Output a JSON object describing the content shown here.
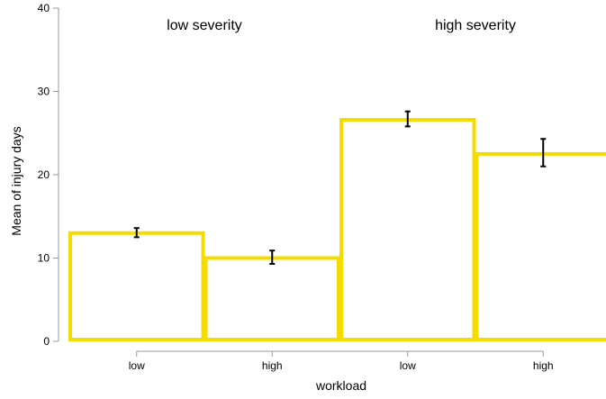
{
  "chart_data": {
    "type": "bar",
    "xlabel": "workload",
    "ylabel": "Mean of injury days",
    "ylim": [
      0,
      40
    ],
    "y_ticks": [
      "0",
      "10",
      "20",
      "30",
      "40"
    ],
    "grid": false,
    "bar_color": "#f5dc00",
    "groups": [
      {
        "label": "low severity",
        "bars": [
          {
            "category": "low",
            "mean": 13.0,
            "err_low": 12.5,
            "err_high": 13.6
          },
          {
            "category": "high",
            "mean": 10.0,
            "err_low": 9.3,
            "err_high": 10.9
          }
        ]
      },
      {
        "label": "high severity",
        "bars": [
          {
            "category": "low",
            "mean": 26.6,
            "err_low": 25.8,
            "err_high": 27.6
          },
          {
            "category": "high",
            "mean": 22.5,
            "err_low": 21.0,
            "err_high": 24.3
          }
        ]
      }
    ]
  }
}
